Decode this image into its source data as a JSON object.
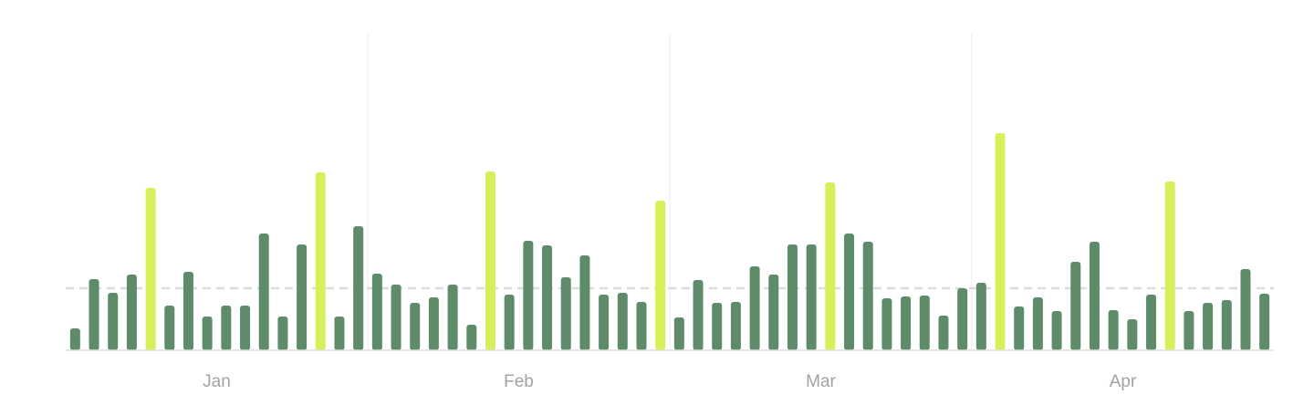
{
  "chart_data": {
    "type": "bar",
    "groups": [
      "Jan",
      "Feb",
      "Mar",
      "Apr"
    ],
    "values": [
      24,
      78,
      63,
      83,
      178,
      49,
      86,
      37,
      49,
      49,
      128,
      37,
      116,
      195,
      37,
      136,
      84,
      72,
      52,
      58,
      72,
      28,
      196,
      61,
      120,
      115,
      80,
      104,
      61,
      63,
      53,
      164,
      36,
      77,
      52,
      53,
      92,
      83,
      116,
      116,
      184,
      128,
      119,
      57,
      59,
      60,
      38,
      68,
      74,
      238,
      48,
      58,
      43,
      97,
      119,
      44,
      34,
      61,
      185,
      43,
      52,
      55,
      89,
      62
    ],
    "colors": [
      "#5e8c6a",
      "#5e8c6a",
      "#5e8c6a",
      "#5e8c6a",
      "#d6f05a",
      "#5e8c6a",
      "#5e8c6a",
      "#5e8c6a",
      "#5e8c6a",
      "#5e8c6a",
      "#5e8c6a",
      "#5e8c6a",
      "#5e8c6a",
      "#d6f05a",
      "#5e8c6a",
      "#5e8c6a",
      "#5e8c6a",
      "#5e8c6a",
      "#5e8c6a",
      "#5e8c6a",
      "#5e8c6a",
      "#5e8c6a",
      "#d6f05a",
      "#5e8c6a",
      "#5e8c6a",
      "#5e8c6a",
      "#5e8c6a",
      "#5e8c6a",
      "#5e8c6a",
      "#5e8c6a",
      "#5e8c6a",
      "#d6f05a",
      "#5e8c6a",
      "#5e8c6a",
      "#5e8c6a",
      "#5e8c6a",
      "#5e8c6a",
      "#5e8c6a",
      "#5e8c6a",
      "#5e8c6a",
      "#d6f05a",
      "#5e8c6a",
      "#5e8c6a",
      "#5e8c6a",
      "#5e8c6a",
      "#5e8c6a",
      "#5e8c6a",
      "#5e8c6a",
      "#5e8c6a",
      "#d6f05a",
      "#5e8c6a",
      "#5e8c6a",
      "#5e8c6a",
      "#5e8c6a",
      "#5e8c6a",
      "#5e8c6a",
      "#5e8c6a",
      "#5e8c6a",
      "#d6f05a",
      "#5e8c6a",
      "#5e8c6a",
      "#5e8c6a",
      "#5e8c6a",
      "#5e8c6a"
    ],
    "reference_line": 68,
    "ylim": [
      0,
      348
    ]
  }
}
